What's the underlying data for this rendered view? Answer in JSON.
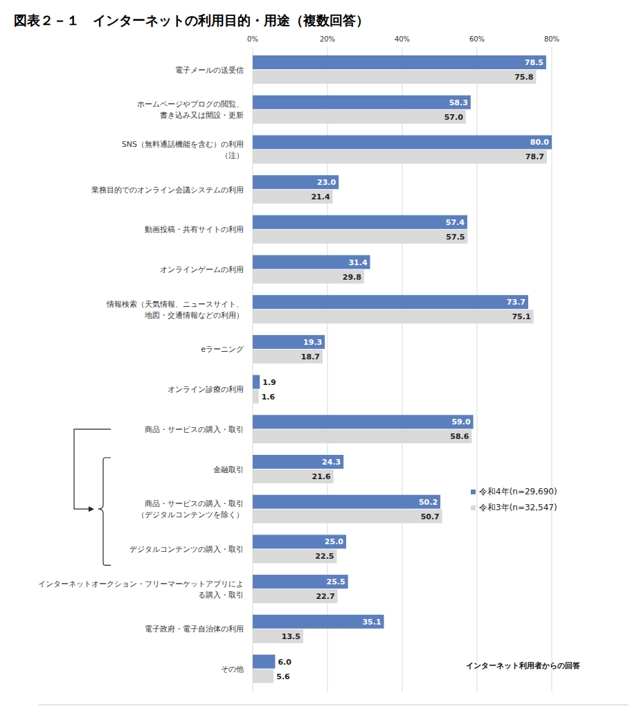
{
  "chart_data": {
    "type": "bar",
    "orientation": "horizontal",
    "title": "図表２－１　インターネットの利用目的・用途（複数回答）",
    "categories": [
      "電子メールの送受信",
      "ホームページやブログの閲覧、\n書き込み又は開設・更新",
      "SNS（無料通話機能を含む）の利用\n（注）",
      "業務目的でのオンライン会議システムの利用",
      "動画投稿・共有サイトの利用",
      "オンラインゲームの利用",
      "情報検索（天気情報、ニュースサイト、\n地図・交通情報などの利用）",
      "eラーニング",
      "オンライン診療の利用",
      "商品・サービスの購入・取引",
      "金融取引",
      "商品・サービスの購入・取引\n（デジタルコンテンツを除く）",
      "デジタルコンテンツの購入・取引",
      "インターネットオークション・フリーマーケットアプリによ\nる購入・取引",
      "電子政府・電子自治体の利用",
      "その他"
    ],
    "series": [
      {
        "name": "令和4年(n=29,690)",
        "color": "#5b7fbe",
        "values": [
          78.5,
          58.3,
          80.0,
          23.0,
          57.4,
          31.4,
          73.7,
          19.3,
          1.9,
          59.0,
          24.3,
          50.2,
          25.0,
          25.5,
          35.1,
          6.0
        ],
        "value_labels": [
          "78.5",
          "58.3",
          "80.0",
          "23.0",
          "57.4",
          "31.4",
          "73.7",
          "19.3",
          "1.9",
          "59.0",
          "24.3",
          "50.2",
          "25.0",
          "25.5",
          "35.1",
          "6.0"
        ]
      },
      {
        "name": "令和3年(n=32,547)",
        "color": "#d9d9d9",
        "values": [
          75.8,
          57.0,
          78.7,
          21.4,
          57.5,
          29.8,
          75.1,
          18.7,
          1.6,
          58.6,
          21.6,
          50.7,
          22.5,
          22.7,
          13.5,
          5.6
        ],
        "value_labels": [
          "75.8",
          "57.0",
          "78.7",
          "21.4",
          "57.5",
          "29.8",
          "75.1",
          "18.7",
          "1.6",
          "58.6",
          "21.6",
          "50.7",
          "22.5",
          "22.7",
          "13.5",
          "5.6"
        ]
      }
    ],
    "xlim": [
      0,
      80
    ],
    "xticks": [
      {
        "value": 0,
        "label": "0%"
      },
      {
        "value": 20,
        "label": "20%"
      },
      {
        "value": 40,
        "label": "40%"
      },
      {
        "value": 60,
        "label": "60%"
      },
      {
        "value": 80,
        "label": "80%"
      }
    ],
    "grid": true,
    "data_labels": true,
    "legend": "right",
    "annotations": [
      "インターネット利用者からの回答"
    ]
  }
}
